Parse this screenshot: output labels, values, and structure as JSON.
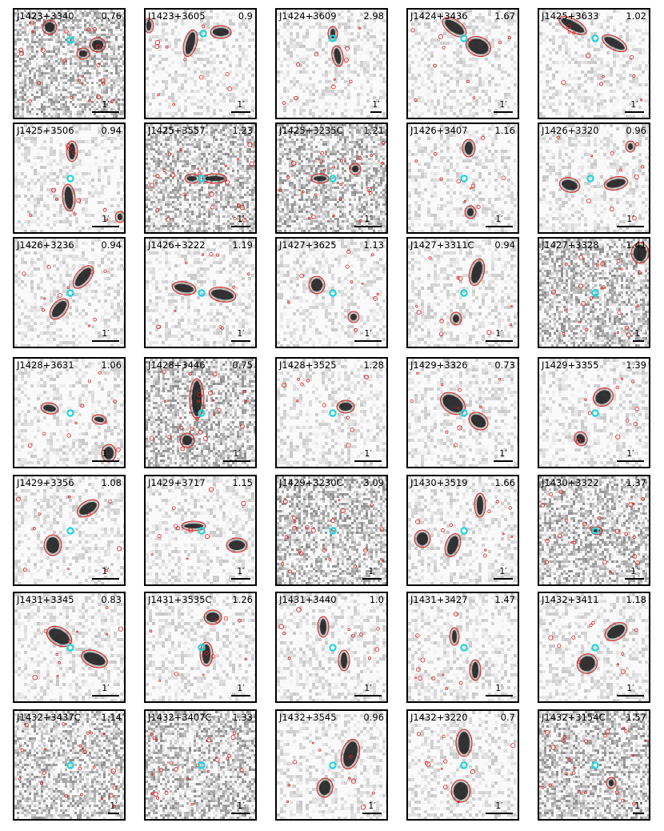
{
  "figure": {
    "scale_label": "1′",
    "colors": {
      "contour": "#e0201c",
      "host_marker": "#1fd6dc",
      "emission": "#1a1a1a",
      "frame": "#000000"
    },
    "panels": [
      {
        "name": "J1423+3340",
        "z": "0.76",
        "noise": "dense",
        "bar": "long"
      },
      {
        "name": "J1423+3605",
        "z": "0.9",
        "noise": "light",
        "bar": "short"
      },
      {
        "name": "J1424+3609",
        "z": "2.98",
        "noise": "light",
        "bar": "tiny"
      },
      {
        "name": "J1424+3436",
        "z": "1.67",
        "noise": "light",
        "bar": "short"
      },
      {
        "name": "J1425+3633",
        "z": "1.02",
        "noise": "light",
        "bar": "short"
      },
      {
        "name": "J1425+3506",
        "z": "0.94",
        "noise": "light",
        "bar": "long"
      },
      {
        "name": "J1425+3557",
        "z": "1.23",
        "noise": "dense",
        "bar": "short"
      },
      {
        "name": "J1425+3235C",
        "z": "1.21",
        "noise": "dense",
        "bar": "long"
      },
      {
        "name": "J1426+3407",
        "z": "1.16",
        "noise": "light",
        "bar": "long"
      },
      {
        "name": "J1426+3320",
        "z": "0.96",
        "noise": "light",
        "bar": "long"
      },
      {
        "name": "J1426+3236",
        "z": "0.94",
        "noise": "light",
        "bar": "long"
      },
      {
        "name": "J1426+3222",
        "z": "1.19",
        "noise": "light",
        "bar": "short"
      },
      {
        "name": "J1427+3625",
        "z": "1.13",
        "noise": "light",
        "bar": "long"
      },
      {
        "name": "J1427+3311C",
        "z": "0.94",
        "noise": "light",
        "bar": "long"
      },
      {
        "name": "J1427+3328",
        "z": "1.41",
        "noise": "dense",
        "bar": "tiny"
      },
      {
        "name": "J1428+3631",
        "z": "1.06",
        "noise": "light",
        "bar": "long"
      },
      {
        "name": "J1428+3446",
        "z": "0.75",
        "noise": "dense",
        "bar": "long"
      },
      {
        "name": "J1428+3525",
        "z": "1.28",
        "noise": "light",
        "bar": "long"
      },
      {
        "name": "J1429+3326",
        "z": "0.73",
        "noise": "light",
        "bar": "short"
      },
      {
        "name": "J1429+3355",
        "z": "1.39",
        "noise": "light",
        "bar": "long"
      },
      {
        "name": "J1429+3356",
        "z": "1.08",
        "noise": "light",
        "bar": "long"
      },
      {
        "name": "J1429+3717",
        "z": "1.15",
        "noise": "light",
        "bar": "short"
      },
      {
        "name": "J1429+3230C",
        "z": "3.09",
        "noise": "dense",
        "bar": "short"
      },
      {
        "name": "J1430+3519",
        "z": "1.66",
        "noise": "light",
        "bar": "short"
      },
      {
        "name": "J1430+3322",
        "z": "1.37",
        "noise": "dense",
        "bar": "short"
      },
      {
        "name": "J1431+3345",
        "z": "0.83",
        "noise": "light",
        "bar": "long"
      },
      {
        "name": "J1431+3535C",
        "z": "1.26",
        "noise": "light",
        "bar": "short"
      },
      {
        "name": "J1431+3440",
        "z": "1.0",
        "noise": "light",
        "bar": "long"
      },
      {
        "name": "J1431+3427",
        "z": "1.47",
        "noise": "light",
        "bar": "long"
      },
      {
        "name": "J1432+3411",
        "z": "1.18",
        "noise": "light",
        "bar": "long"
      },
      {
        "name": "J1432+3437C",
        "z": "1.14",
        "noise": "dense",
        "bar": "tiny"
      },
      {
        "name": "J1432+3407C",
        "z": "1.33",
        "noise": "dense",
        "bar": "short"
      },
      {
        "name": "J1432+3545",
        "z": "0.96",
        "noise": "light",
        "bar": "short"
      },
      {
        "name": "J1432+3220",
        "z": "0.7",
        "noise": "light",
        "bar": "long"
      },
      {
        "name": "J1432+3154C",
        "z": "1.57",
        "noise": "dense",
        "bar": "tiny"
      }
    ]
  }
}
